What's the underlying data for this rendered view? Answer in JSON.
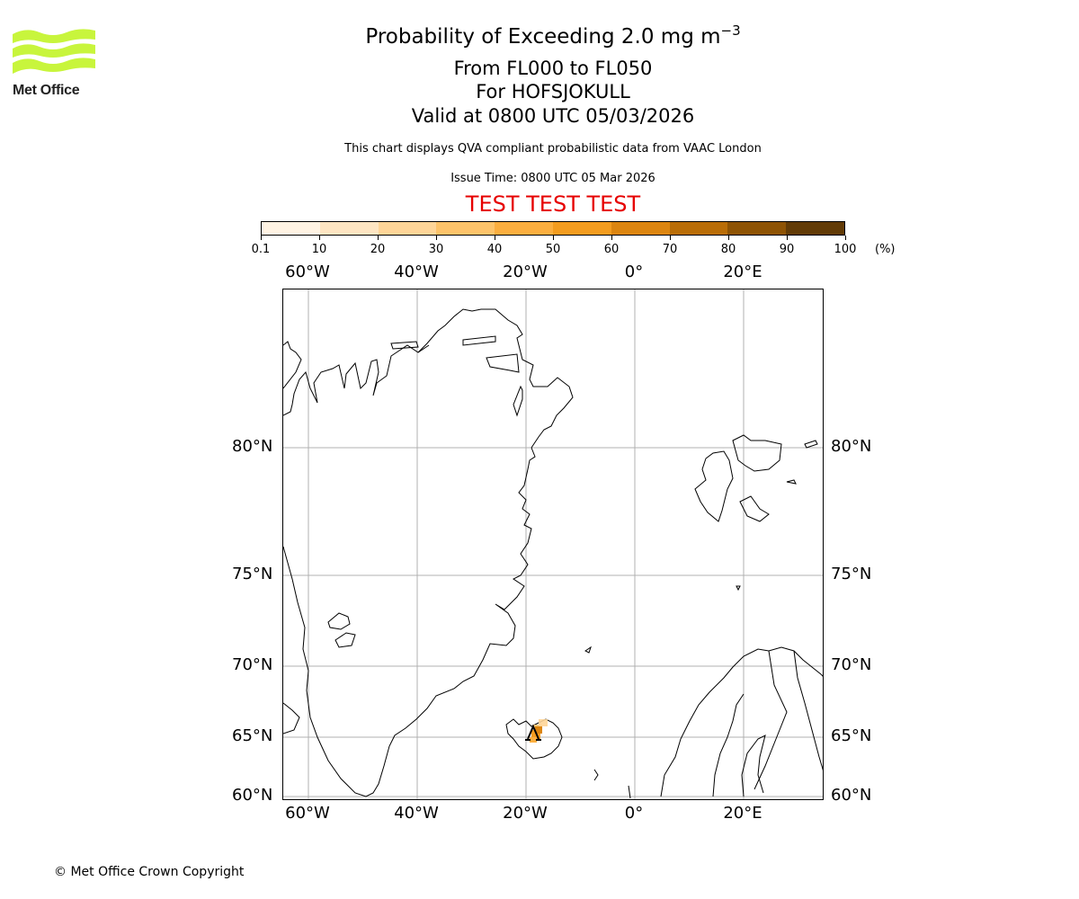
{
  "header": {
    "title_prefix": "Probability of Exceeding 2.0 mg m",
    "title_superscript": "−3",
    "level_range": "From FL000 to FL050",
    "volcano": "For HOFSJOKULL",
    "valid_time": "Valid at 0800 UTC 05/03/2026",
    "description": "This chart displays QVA compliant probabilistic data from VAAC London",
    "issue_time": "Issue Time: 0800 UTC 05 Mar 2026",
    "test_banner": "TEST TEST TEST"
  },
  "logo": {
    "text": "Met Office",
    "icon": "met-office-wave-icon",
    "color": "#c8f53c"
  },
  "colorbar": {
    "unit": "(%)",
    "ticks": [
      "0.1",
      "10",
      "20",
      "30",
      "40",
      "50",
      "60",
      "70",
      "80",
      "90",
      "100"
    ],
    "colors": [
      "#fff3e3",
      "#fee5c2",
      "#fed598",
      "#fdc36a",
      "#fbae3f",
      "#f39c1f",
      "#dc8510",
      "#b96d07",
      "#8e5304",
      "#623b06"
    ]
  },
  "map": {
    "lon_labels_top": [
      "60°W",
      "40°W",
      "20°W",
      "0°",
      "20°E"
    ],
    "lon_labels_bottom": [
      "60°W",
      "40°W",
      "20°W",
      "0°",
      "20°E"
    ],
    "lat_labels_left": [
      "80°N",
      "75°N",
      "70°N",
      "65°N",
      "60°N"
    ],
    "lat_labels_right": [
      "80°N",
      "75°N",
      "70°N",
      "65°N",
      "60°N"
    ],
    "gridline_color": "#b0b0b0",
    "volcano_marker": "volcano-triangle-icon"
  },
  "chart_data": {
    "type": "heatmap",
    "title": "Probability of Exceeding 2.0 mg m-3, FL000 to FL050, HOFSJOKULL, valid 0800 UTC 05/03/2026",
    "colorbar_levels": [
      0.1,
      10,
      20,
      30,
      40,
      50,
      60,
      70,
      80,
      90,
      100
    ],
    "colorbar_unit": "%",
    "lon_range": [
      -65,
      35
    ],
    "lat_range": [
      60,
      85
    ],
    "plume": {
      "region": "Central/North Iceland near Hofsjokull",
      "approx_lon": [
        -19,
        -16
      ],
      "approx_lat": [
        64.8,
        66.0
      ],
      "max_probability_band": "30-60"
    }
  },
  "footer": {
    "copyright": "© Met Office Crown Copyright"
  }
}
